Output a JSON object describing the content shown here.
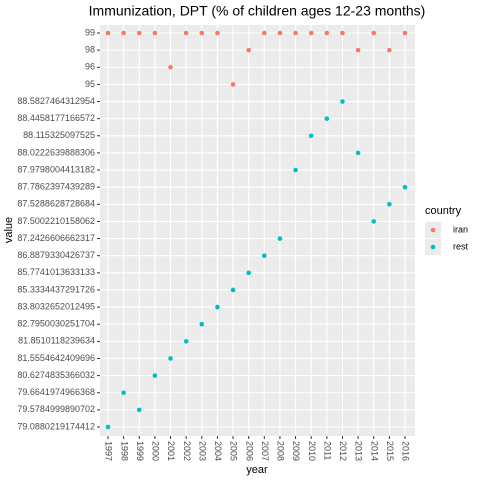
{
  "chart_data": {
    "type": "scatter",
    "title": "Immunization, DPT (% of children ages 12-23 months)",
    "x_label": "year",
    "y_label": "value",
    "legend_title": "country",
    "legend_position": "right",
    "grid": true,
    "x": [
      1997,
      1998,
      1999,
      2000,
      2001,
      2002,
      2003,
      2004,
      2005,
      2006,
      2007,
      2008,
      2009,
      2010,
      2011,
      2012,
      2013,
      2014,
      2015,
      2016
    ],
    "yticks": [
      79.0880219174412,
      79.5784999890702,
      79.6641974966368,
      80.6274835366032,
      81.5554642409696,
      81.8510118239634,
      82.7950030251704,
      83.8032652012495,
      85.3334437291726,
      85.7741013633133,
      86.8879330426737,
      87.2426606662317,
      87.5002210158062,
      87.5288628728684,
      87.7862397439289,
      87.9798004413182,
      88.0222639888306,
      88.115325097525,
      88.4458177166572,
      88.5827464312954,
      95,
      96,
      98,
      99
    ],
    "series": [
      {
        "name": "iran",
        "color": "#F8766D",
        "values": [
          99,
          99,
          99,
          99,
          96,
          99,
          99,
          99,
          95,
          98,
          99,
          99,
          99,
          99,
          99,
          99,
          98,
          99,
          98,
          99
        ]
      },
      {
        "name": "rest",
        "color": "#00BFC4",
        "values": [
          79.0880219174412,
          79.6641974966368,
          79.5784999890702,
          80.6274835366032,
          81.5554642409696,
          81.8510118239634,
          82.7950030251704,
          83.8032652012495,
          85.3334437291726,
          85.7741013633133,
          86.8879330426737,
          87.2426606662317,
          87.9798004413182,
          88.115325097525,
          88.4458177166572,
          88.5827464312954,
          88.0222639888306,
          87.5002210158062,
          87.5288628728684,
          87.7862397439289
        ]
      }
    ]
  }
}
